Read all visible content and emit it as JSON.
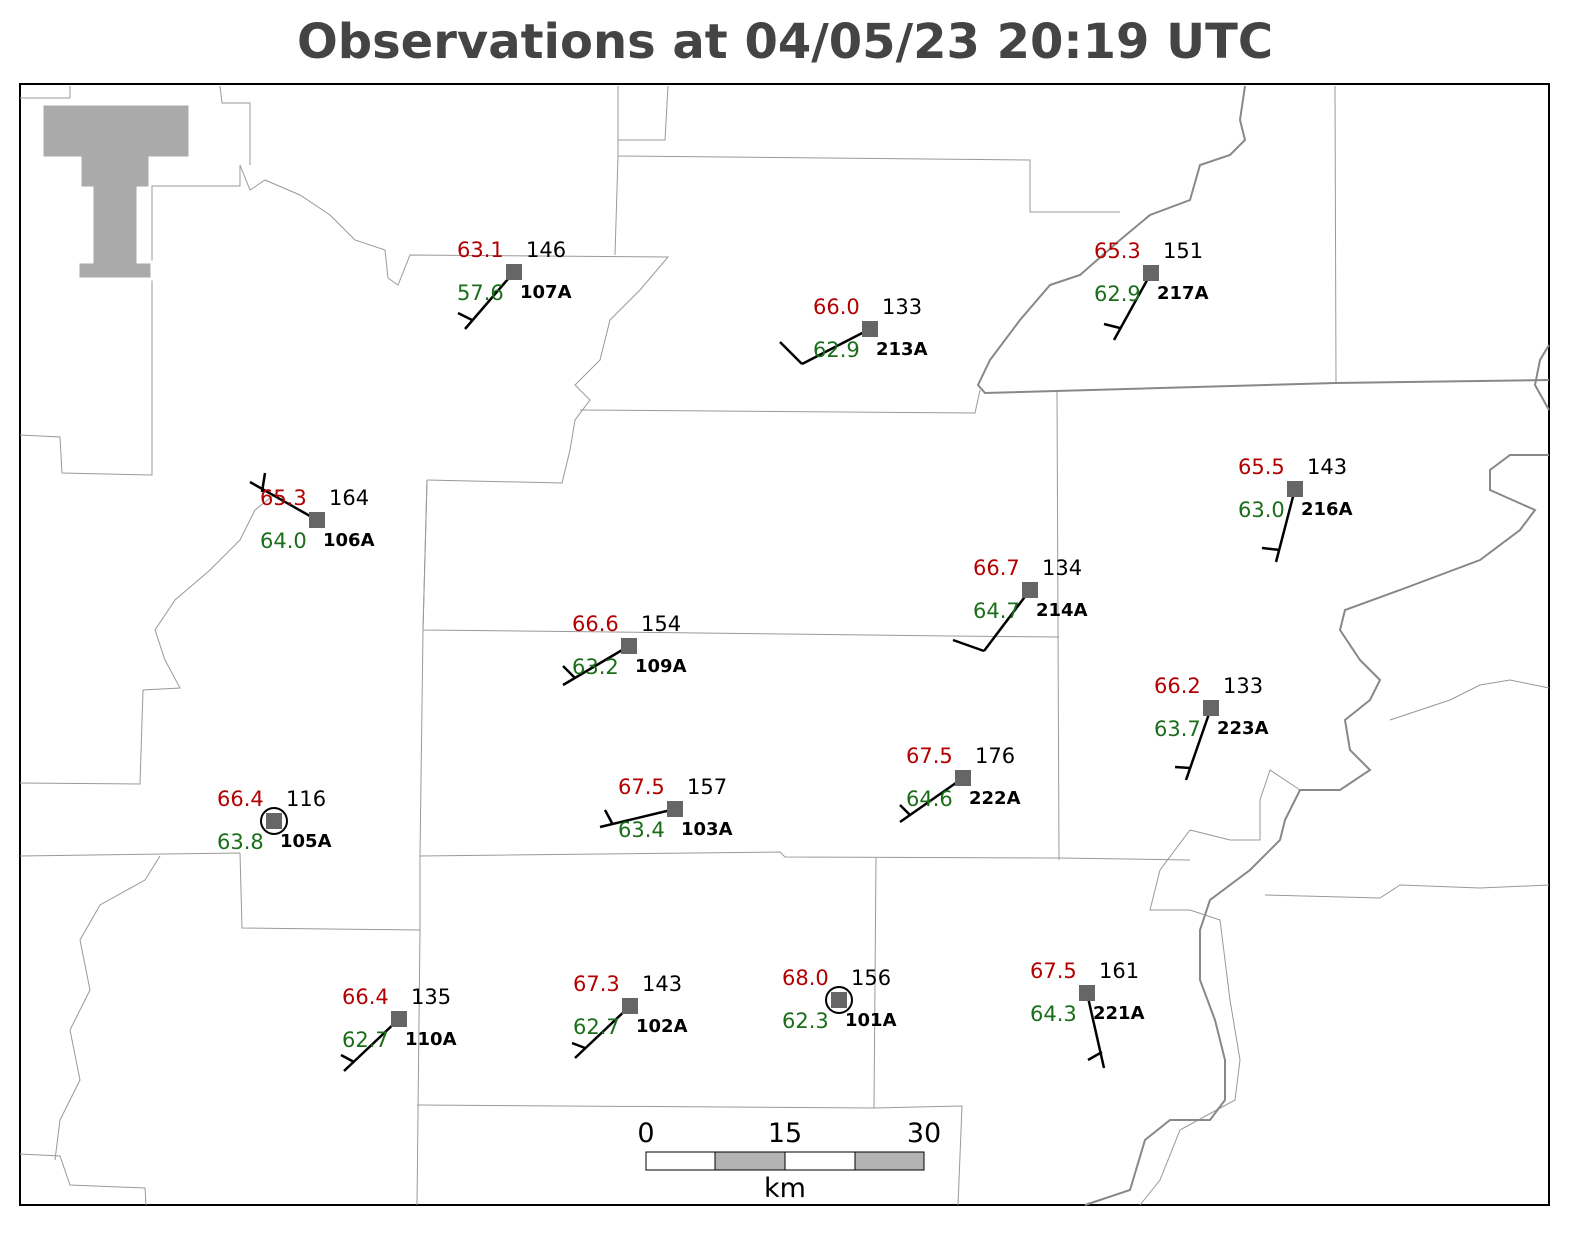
{
  "title": "Observations at 04/05/23 20:19 UTC",
  "stations": [
    {
      "id": "107A",
      "temp": "63.1",
      "dewpoint": "57.6",
      "pressure": "146"
    },
    {
      "id": "213A",
      "temp": "66.0",
      "dewpoint": "62.9",
      "pressure": "133"
    },
    {
      "id": "217A",
      "temp": "65.3",
      "dewpoint": "62.9",
      "pressure": "151"
    },
    {
      "id": "106A",
      "temp": "65.3",
      "dewpoint": "64.0",
      "pressure": "164"
    },
    {
      "id": "216A",
      "temp": "65.5",
      "dewpoint": "63.0",
      "pressure": "143"
    },
    {
      "id": "214A",
      "temp": "66.7",
      "dewpoint": "64.7",
      "pressure": "134"
    },
    {
      "id": "109A",
      "temp": "66.6",
      "dewpoint": "63.2",
      "pressure": "154"
    },
    {
      "id": "223A",
      "temp": "66.2",
      "dewpoint": "63.7",
      "pressure": "133"
    },
    {
      "id": "105A",
      "temp": "66.4",
      "dewpoint": "63.8",
      "pressure": "116"
    },
    {
      "id": "103A",
      "temp": "67.5",
      "dewpoint": "63.4",
      "pressure": "157"
    },
    {
      "id": "222A",
      "temp": "67.5",
      "dewpoint": "64.6",
      "pressure": "176"
    },
    {
      "id": "110A",
      "temp": "66.4",
      "dewpoint": "62.7",
      "pressure": "135"
    },
    {
      "id": "102A",
      "temp": "67.3",
      "dewpoint": "62.7",
      "pressure": "143"
    },
    {
      "id": "101A",
      "temp": "68.0",
      "dewpoint": "62.3",
      "pressure": "156"
    },
    {
      "id": "221A",
      "temp": "67.5",
      "dewpoint": "64.3",
      "pressure": "161"
    }
  ],
  "scale_bar": {
    "ticks": [
      "0",
      "15",
      "30"
    ],
    "unit": "km"
  }
}
